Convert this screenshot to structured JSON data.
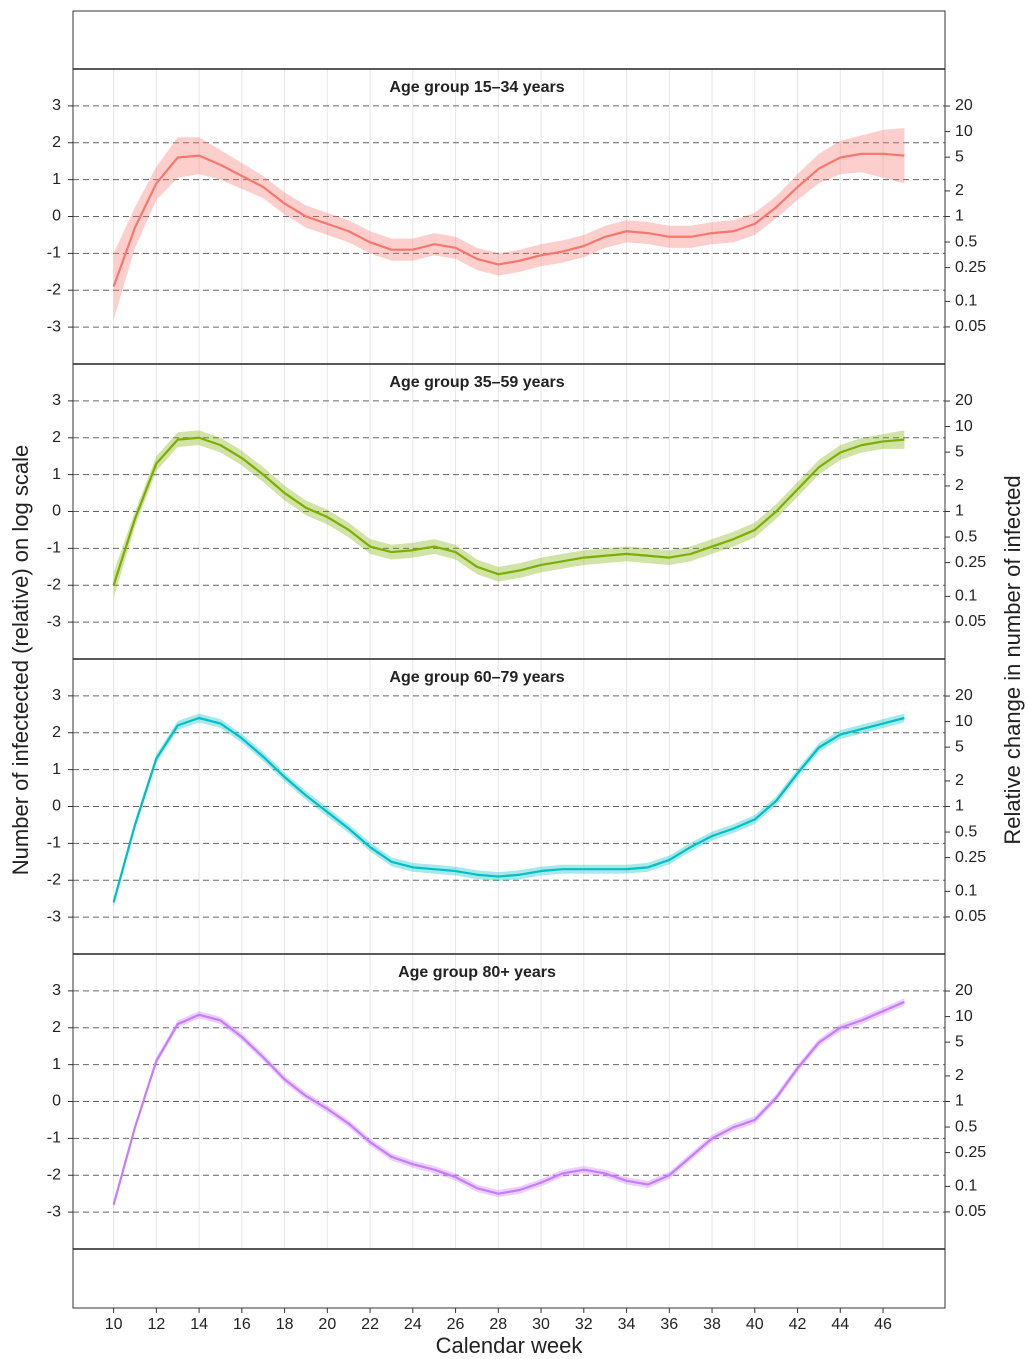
{
  "labels": {
    "x": "Calendar week",
    "y": "Number of infectected (relative) on log scale",
    "y2": "Relative change in number of infected"
  },
  "chart_data": [
    {
      "type": "line",
      "title": "Age group 15–34 years",
      "x": [
        10,
        11,
        12,
        13,
        14,
        15,
        16,
        17,
        18,
        19,
        20,
        21,
        22,
        23,
        24,
        25,
        26,
        27,
        28,
        29,
        30,
        31,
        32,
        33,
        34,
        35,
        36,
        37,
        38,
        39,
        40,
        41,
        42,
        43,
        44,
        45,
        46,
        47
      ],
      "series": [
        {
          "color": "#F8766D",
          "values": [
            -1.9,
            -0.3,
            0.9,
            1.6,
            1.65,
            1.4,
            1.1,
            0.8,
            0.35,
            0.0,
            -0.2,
            -0.4,
            -0.7,
            -0.9,
            -0.9,
            -0.75,
            -0.85,
            -1.15,
            -1.3,
            -1.2,
            -1.05,
            -0.95,
            -0.8,
            -0.55,
            -0.4,
            -0.45,
            -0.55,
            -0.55,
            -0.45,
            -0.4,
            -0.2,
            0.25,
            0.8,
            1.3,
            1.6,
            1.7,
            1.7,
            1.65
          ],
          "lower": [
            -2.8,
            -0.85,
            0.45,
            1.05,
            1.15,
            1.0,
            0.75,
            0.5,
            0.05,
            -0.3,
            -0.5,
            -0.7,
            -1.0,
            -1.2,
            -1.2,
            -1.05,
            -1.15,
            -1.45,
            -1.6,
            -1.5,
            -1.35,
            -1.25,
            -1.1,
            -0.85,
            -0.7,
            -0.75,
            -0.85,
            -0.85,
            -0.75,
            -0.7,
            -0.5,
            -0.05,
            0.45,
            0.9,
            1.15,
            1.2,
            1.05,
            0.9
          ],
          "upper": [
            -1.0,
            0.25,
            1.35,
            2.15,
            2.15,
            1.8,
            1.45,
            1.1,
            0.65,
            0.3,
            0.1,
            -0.1,
            -0.4,
            -0.6,
            -0.6,
            -0.45,
            -0.55,
            -0.85,
            -1.0,
            -0.9,
            -0.75,
            -0.65,
            -0.5,
            -0.25,
            -0.1,
            -0.15,
            -0.25,
            -0.25,
            -0.15,
            -0.1,
            0.1,
            0.55,
            1.15,
            1.7,
            2.05,
            2.2,
            2.35,
            2.4
          ]
        }
      ],
      "xlim": [
        8.1,
        48.9
      ],
      "xticks": [
        10,
        12,
        14,
        16,
        18,
        20,
        22,
        24,
        26,
        28,
        30,
        32,
        34,
        36,
        38,
        40,
        42,
        44,
        46
      ],
      "ylim": [
        -4,
        4
      ],
      "yticks": [
        3,
        2,
        1,
        0,
        -1,
        -2,
        -3
      ],
      "y2log": true,
      "y2lim": [
        0.0183,
        54.6
      ],
      "y2ticks": [
        20,
        10,
        5,
        2,
        1,
        0.5,
        0.25,
        0.1,
        0.05
      ]
    },
    {
      "type": "line",
      "title": "Age group 35–59 years",
      "x": [
        10,
        11,
        12,
        13,
        14,
        15,
        16,
        17,
        18,
        19,
        20,
        21,
        22,
        23,
        24,
        25,
        26,
        27,
        28,
        29,
        30,
        31,
        32,
        33,
        34,
        35,
        36,
        37,
        38,
        39,
        40,
        41,
        42,
        43,
        44,
        45,
        46,
        47
      ],
      "series": [
        {
          "color": "#7CAE00",
          "values": [
            -2.0,
            -0.2,
            1.3,
            1.95,
            2.0,
            1.8,
            1.45,
            1.0,
            0.5,
            0.1,
            -0.15,
            -0.5,
            -0.95,
            -1.1,
            -1.05,
            -0.95,
            -1.1,
            -1.5,
            -1.7,
            -1.6,
            -1.45,
            -1.35,
            -1.25,
            -1.2,
            -1.15,
            -1.2,
            -1.25,
            -1.15,
            -0.95,
            -0.75,
            -0.5,
            0.0,
            0.6,
            1.2,
            1.6,
            1.8,
            1.9,
            1.95
          ],
          "lower": [
            -2.35,
            -0.4,
            1.1,
            1.75,
            1.8,
            1.6,
            1.25,
            0.8,
            0.3,
            -0.1,
            -0.35,
            -0.7,
            -1.15,
            -1.3,
            -1.25,
            -1.15,
            -1.3,
            -1.7,
            -1.9,
            -1.8,
            -1.65,
            -1.55,
            -1.45,
            -1.4,
            -1.35,
            -1.4,
            -1.45,
            -1.35,
            -1.15,
            -0.95,
            -0.7,
            -0.2,
            0.4,
            1.0,
            1.4,
            1.6,
            1.7,
            1.7
          ],
          "upper": [
            -1.65,
            0.0,
            1.5,
            2.15,
            2.2,
            2.0,
            1.65,
            1.2,
            0.7,
            0.3,
            0.05,
            -0.3,
            -0.75,
            -0.9,
            -0.85,
            -0.75,
            -0.9,
            -1.3,
            -1.5,
            -1.4,
            -1.25,
            -1.15,
            -1.05,
            -1.0,
            -0.95,
            -1.0,
            -1.05,
            -0.95,
            -0.75,
            -0.55,
            -0.3,
            0.2,
            0.8,
            1.4,
            1.8,
            2.0,
            2.1,
            2.2
          ]
        }
      ],
      "xlim": [
        8.1,
        48.9
      ],
      "xticks": [
        10,
        12,
        14,
        16,
        18,
        20,
        22,
        24,
        26,
        28,
        30,
        32,
        34,
        36,
        38,
        40,
        42,
        44,
        46
      ],
      "ylim": [
        -4,
        4
      ],
      "yticks": [
        3,
        2,
        1,
        0,
        -1,
        -2,
        -3
      ],
      "y2log": true,
      "y2lim": [
        0.0183,
        54.6
      ],
      "y2ticks": [
        20,
        10,
        5,
        2,
        1,
        0.5,
        0.25,
        0.1,
        0.05
      ]
    },
    {
      "type": "line",
      "title": "Age group 60–79 years",
      "x": [
        10,
        11,
        12,
        13,
        14,
        15,
        16,
        17,
        18,
        19,
        20,
        21,
        22,
        23,
        24,
        25,
        26,
        27,
        28,
        29,
        30,
        31,
        32,
        33,
        34,
        35,
        36,
        37,
        38,
        39,
        40,
        41,
        42,
        43,
        44,
        45,
        46,
        47
      ],
      "series": [
        {
          "color": "#00BFC4",
          "values": [
            -2.6,
            -0.5,
            1.3,
            2.2,
            2.4,
            2.25,
            1.85,
            1.35,
            0.8,
            0.3,
            -0.15,
            -0.6,
            -1.1,
            -1.5,
            -1.65,
            -1.7,
            -1.75,
            -1.85,
            -1.9,
            -1.85,
            -1.75,
            -1.7,
            -1.7,
            -1.7,
            -1.7,
            -1.65,
            -1.45,
            -1.1,
            -0.8,
            -0.6,
            -0.35,
            0.15,
            0.9,
            1.6,
            1.95,
            2.1,
            2.25,
            2.4
          ],
          "lower": [
            -2.72,
            -0.62,
            1.18,
            2.08,
            2.28,
            2.13,
            1.73,
            1.23,
            0.68,
            0.18,
            -0.27,
            -0.72,
            -1.22,
            -1.62,
            -1.77,
            -1.82,
            -1.87,
            -1.97,
            -2.02,
            -1.97,
            -1.87,
            -1.82,
            -1.82,
            -1.82,
            -1.82,
            -1.77,
            -1.57,
            -1.22,
            -0.92,
            -0.72,
            -0.47,
            0.03,
            0.78,
            1.48,
            1.83,
            1.98,
            2.13,
            2.28
          ],
          "upper": [
            -2.48,
            -0.38,
            1.42,
            2.32,
            2.52,
            2.37,
            1.97,
            1.47,
            0.92,
            0.42,
            -0.03,
            -0.48,
            -0.98,
            -1.38,
            -1.53,
            -1.58,
            -1.63,
            -1.73,
            -1.78,
            -1.73,
            -1.63,
            -1.58,
            -1.58,
            -1.58,
            -1.58,
            -1.53,
            -1.33,
            -0.98,
            -0.68,
            -0.48,
            -0.23,
            0.27,
            1.02,
            1.72,
            2.07,
            2.22,
            2.37,
            2.52
          ]
        }
      ],
      "xlim": [
        8.1,
        48.9
      ],
      "xticks": [
        10,
        12,
        14,
        16,
        18,
        20,
        22,
        24,
        26,
        28,
        30,
        32,
        34,
        36,
        38,
        40,
        42,
        44,
        46
      ],
      "ylim": [
        -4,
        4
      ],
      "yticks": [
        3,
        2,
        1,
        0,
        -1,
        -2,
        -3
      ],
      "y2log": true,
      "y2lim": [
        0.0183,
        54.6
      ],
      "y2ticks": [
        20,
        10,
        5,
        2,
        1,
        0.5,
        0.25,
        0.1,
        0.05
      ]
    },
    {
      "type": "line",
      "title": "Age group 80+ years",
      "x": [
        10,
        11,
        12,
        13,
        14,
        15,
        16,
        17,
        18,
        19,
        20,
        21,
        22,
        23,
        24,
        25,
        26,
        27,
        28,
        29,
        30,
        31,
        32,
        33,
        34,
        35,
        36,
        37,
        38,
        39,
        40,
        41,
        42,
        43,
        44,
        45,
        46,
        47
      ],
      "series": [
        {
          "color": "#C77CFF",
          "values": [
            -2.8,
            -0.7,
            1.1,
            2.1,
            2.35,
            2.2,
            1.75,
            1.2,
            0.6,
            0.15,
            -0.2,
            -0.6,
            -1.1,
            -1.5,
            -1.7,
            -1.85,
            -2.05,
            -2.35,
            -2.5,
            -2.4,
            -2.2,
            -1.95,
            -1.85,
            -1.95,
            -2.15,
            -2.25,
            -2.0,
            -1.5,
            -1.0,
            -0.7,
            -0.5,
            0.1,
            0.9,
            1.6,
            2.0,
            2.2,
            2.45,
            2.7
          ],
          "lower": [
            -2.9,
            -0.8,
            1.0,
            2.0,
            2.25,
            2.1,
            1.65,
            1.1,
            0.5,
            0.05,
            -0.3,
            -0.7,
            -1.2,
            -1.6,
            -1.8,
            -1.95,
            -2.15,
            -2.45,
            -2.6,
            -2.5,
            -2.3,
            -2.05,
            -1.95,
            -2.05,
            -2.25,
            -2.35,
            -2.1,
            -1.6,
            -1.1,
            -0.8,
            -0.6,
            0.0,
            0.8,
            1.5,
            1.9,
            2.1,
            2.35,
            2.6
          ],
          "upper": [
            -2.7,
            -0.6,
            1.2,
            2.2,
            2.45,
            2.3,
            1.85,
            1.3,
            0.7,
            0.25,
            -0.1,
            -0.5,
            -1.0,
            -1.4,
            -1.6,
            -1.75,
            -1.95,
            -2.25,
            -2.4,
            -2.3,
            -2.1,
            -1.85,
            -1.75,
            -1.85,
            -2.05,
            -2.15,
            -1.9,
            -1.4,
            -0.9,
            -0.6,
            -0.4,
            0.2,
            1.0,
            1.7,
            2.1,
            2.3,
            2.55,
            2.8
          ]
        }
      ],
      "xlim": [
        8.1,
        48.9
      ],
      "xticks": [
        10,
        12,
        14,
        16,
        18,
        20,
        22,
        24,
        26,
        28,
        30,
        32,
        34,
        36,
        38,
        40,
        42,
        44,
        46
      ],
      "ylim": [
        -4,
        4
      ],
      "yticks": [
        3,
        2,
        1,
        0,
        -1,
        -2,
        -3
      ],
      "y2log": true,
      "y2lim": [
        0.0183,
        54.6
      ],
      "y2ticks": [
        20,
        10,
        5,
        2,
        1,
        0.5,
        0.25,
        0.1,
        0.05
      ]
    }
  ]
}
